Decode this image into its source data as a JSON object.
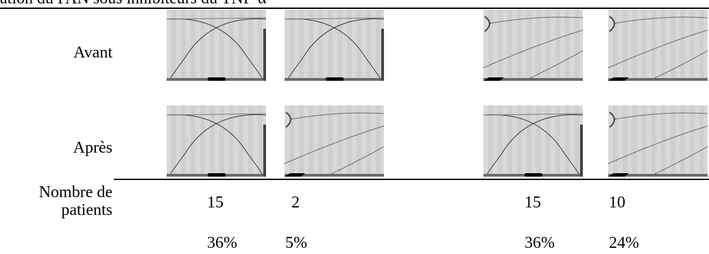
{
  "header": {
    "title": "ation du PAN sous inhibiteurs du TNF-α"
  },
  "table": {
    "row_labels": [
      "Avant",
      "Après",
      "Nombre de patients"
    ],
    "counts": [
      15,
      2,
      15,
      10
    ],
    "percentages": [
      "36%",
      "5%",
      "36%",
      "24%"
    ]
  }
}
